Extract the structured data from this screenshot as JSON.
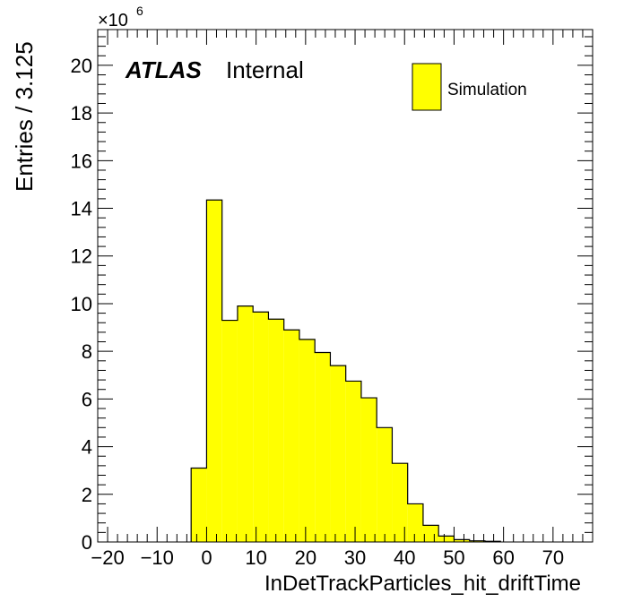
{
  "chart_data": {
    "type": "bar",
    "xlabel": "InDetTrackParticles_hit_driftTime",
    "ylabel": "Entries / 3.125",
    "y_multiplier": "×10",
    "y_multiplier_exp": "6",
    "xlim": [
      -22,
      78
    ],
    "ylim": [
      0,
      21.5
    ],
    "bin_width": 3.125,
    "x_ticks": [
      -20,
      -10,
      0,
      10,
      20,
      30,
      40,
      50,
      60,
      70
    ],
    "x_tick_labels": [
      "−20",
      "−10",
      "0",
      "10",
      "20",
      "30",
      "40",
      "50",
      "60",
      "70"
    ],
    "y_ticks": [
      0,
      2,
      4,
      6,
      8,
      10,
      12,
      14,
      16,
      18,
      20
    ],
    "y_tick_labels": [
      "0",
      "2",
      "4",
      "6",
      "8",
      "10",
      "12",
      "14",
      "16",
      "18",
      "20"
    ],
    "bins": [
      {
        "x": -3.125,
        "value": 3.1
      },
      {
        "x": 0.0,
        "value": 14.35
      },
      {
        "x": 3.125,
        "value": 9.3
      },
      {
        "x": 6.25,
        "value": 9.9
      },
      {
        "x": 9.375,
        "value": 9.65
      },
      {
        "x": 12.5,
        "value": 9.35
      },
      {
        "x": 15.625,
        "value": 8.9
      },
      {
        "x": 18.75,
        "value": 8.5
      },
      {
        "x": 21.875,
        "value": 7.95
      },
      {
        "x": 25.0,
        "value": 7.4
      },
      {
        "x": 28.125,
        "value": 6.75
      },
      {
        "x": 31.25,
        "value": 6.05
      },
      {
        "x": 34.375,
        "value": 4.8
      },
      {
        "x": 37.5,
        "value": 3.3
      },
      {
        "x": 40.625,
        "value": 1.6
      },
      {
        "x": 43.75,
        "value": 0.7
      },
      {
        "x": 46.875,
        "value": 0.25
      },
      {
        "x": 50.0,
        "value": 0.1
      },
      {
        "x": 53.125,
        "value": 0.05
      },
      {
        "x": 56.25,
        "value": 0.03
      }
    ],
    "fill_color": "#ffff00",
    "edge_color": "#000000",
    "legend": {
      "entries": [
        "Simulation"
      ],
      "placement": "top-right"
    },
    "annotation": {
      "experiment": "ATLAS",
      "status": "Internal"
    },
    "grid": false
  }
}
